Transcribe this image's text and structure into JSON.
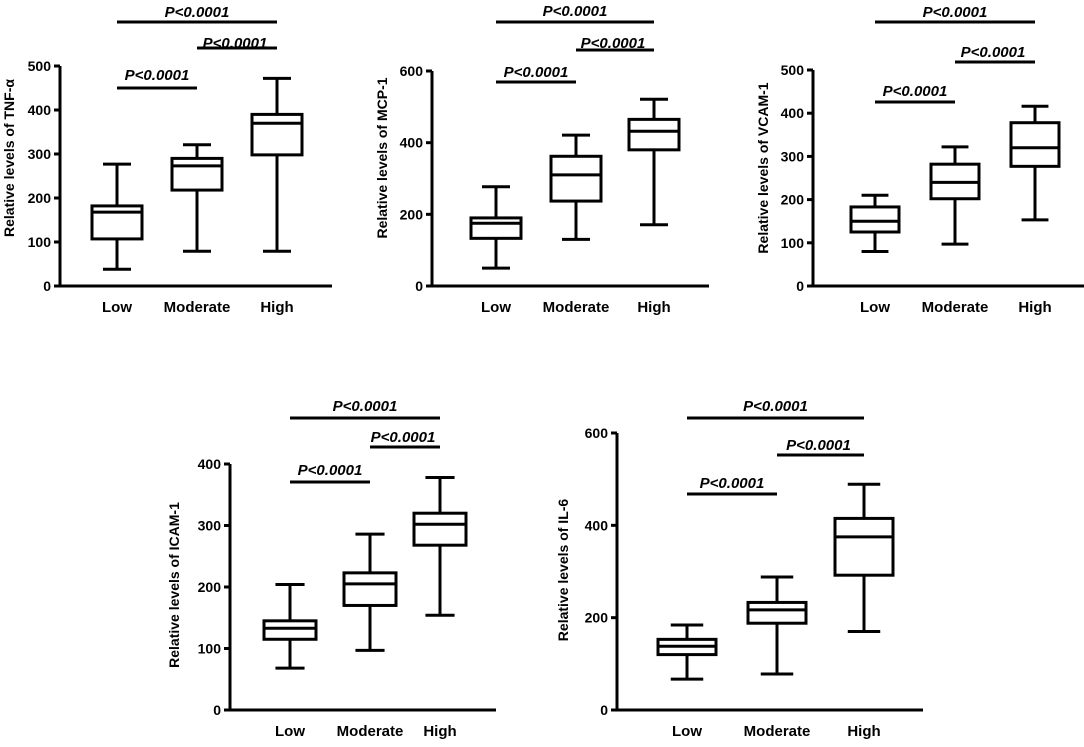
{
  "chart_data": [
    {
      "type": "boxplot",
      "ylabel": "Relative levels of TNF-α",
      "categories": [
        "Low",
        "Moderate",
        "High"
      ],
      "yticks": [
        0,
        100,
        200,
        300,
        400,
        500
      ],
      "ylim": [
        0,
        500
      ],
      "series": [
        {
          "name": "Low",
          "min": 38,
          "q1": 107,
          "median": 168,
          "q3": 182,
          "max": 277
        },
        {
          "name": "Moderate",
          "min": 79,
          "q1": 218,
          "median": 273,
          "q3": 290,
          "max": 321
        },
        {
          "name": "High",
          "min": 79,
          "q1": 298,
          "median": 370,
          "q3": 390,
          "max": 472
        }
      ],
      "comparisons": [
        {
          "from": 0,
          "to": 1,
          "label": "P<0.0001"
        },
        {
          "from": 1,
          "to": 2,
          "label": "P<0.0001"
        },
        {
          "from": 0,
          "to": 2,
          "label": "P<0.0001"
        }
      ]
    },
    {
      "type": "boxplot",
      "ylabel": "Relative levels of MCP-1",
      "categories": [
        "Low",
        "Moderate",
        "High"
      ],
      "yticks": [
        0,
        200,
        400,
        600
      ],
      "ylim": [
        0,
        600
      ],
      "series": [
        {
          "name": "Low",
          "min": 50,
          "q1": 133,
          "median": 175,
          "q3": 190,
          "max": 277
        },
        {
          "name": "Moderate",
          "min": 130,
          "q1": 237,
          "median": 310,
          "q3": 362,
          "max": 421
        },
        {
          "name": "High",
          "min": 171,
          "q1": 380,
          "median": 432,
          "q3": 465,
          "max": 521
        }
      ],
      "comparisons": [
        {
          "from": 0,
          "to": 1,
          "label": "P<0.0001"
        },
        {
          "from": 1,
          "to": 2,
          "label": "P<0.0001"
        },
        {
          "from": 0,
          "to": 2,
          "label": "P<0.0001"
        }
      ]
    },
    {
      "type": "boxplot",
      "ylabel": "Relative levels of VCAM-1",
      "categories": [
        "Low",
        "Moderate",
        "High"
      ],
      "yticks": [
        0,
        100,
        200,
        300,
        400,
        500
      ],
      "ylim": [
        0,
        500
      ],
      "series": [
        {
          "name": "Low",
          "min": 80,
          "q1": 125,
          "median": 150,
          "q3": 183,
          "max": 210
        },
        {
          "name": "Moderate",
          "min": 97,
          "q1": 202,
          "median": 240,
          "q3": 282,
          "max": 322
        },
        {
          "name": "High",
          "min": 153,
          "q1": 277,
          "median": 320,
          "q3": 378,
          "max": 416
        }
      ],
      "comparisons": [
        {
          "from": 0,
          "to": 1,
          "label": "P<0.0001"
        },
        {
          "from": 1,
          "to": 2,
          "label": "P<0.0001"
        },
        {
          "from": 0,
          "to": 2,
          "label": "P<0.0001"
        }
      ]
    },
    {
      "type": "boxplot",
      "ylabel": "Relative levels of ICAM-1",
      "categories": [
        "Low",
        "Moderate",
        "High"
      ],
      "yticks": [
        0,
        100,
        200,
        300,
        400
      ],
      "ylim": [
        0,
        400
      ],
      "series": [
        {
          "name": "Low",
          "min": 68,
          "q1": 115,
          "median": 133,
          "q3": 145,
          "max": 204
        },
        {
          "name": "Moderate",
          "min": 97,
          "q1": 170,
          "median": 205,
          "q3": 223,
          "max": 286
        },
        {
          "name": "High",
          "min": 154,
          "q1": 268,
          "median": 302,
          "q3": 320,
          "max": 378
        }
      ],
      "comparisons": [
        {
          "from": 0,
          "to": 1,
          "label": "P<0.0001"
        },
        {
          "from": 1,
          "to": 2,
          "label": "P<0.0001"
        },
        {
          "from": 0,
          "to": 2,
          "label": "P<0.0001"
        }
      ]
    },
    {
      "type": "boxplot",
      "ylabel": "Relative levels of IL-6",
      "categories": [
        "Low",
        "Moderate",
        "High"
      ],
      "yticks": [
        0,
        200,
        400,
        600
      ],
      "ylim": [
        0,
        600
      ],
      "series": [
        {
          "name": "Low",
          "min": 67,
          "q1": 120,
          "median": 138,
          "q3": 153,
          "max": 184
        },
        {
          "name": "Moderate",
          "min": 78,
          "q1": 188,
          "median": 217,
          "q3": 233,
          "max": 288
        },
        {
          "name": "High",
          "min": 170,
          "q1": 292,
          "median": 375,
          "q3": 415,
          "max": 489
        }
      ],
      "comparisons": [
        {
          "from": 0,
          "to": 1,
          "label": "P<0.0001"
        },
        {
          "from": 1,
          "to": 2,
          "label": "P<0.0001"
        },
        {
          "from": 0,
          "to": 2,
          "label": "P<0.0001"
        }
      ]
    }
  ]
}
